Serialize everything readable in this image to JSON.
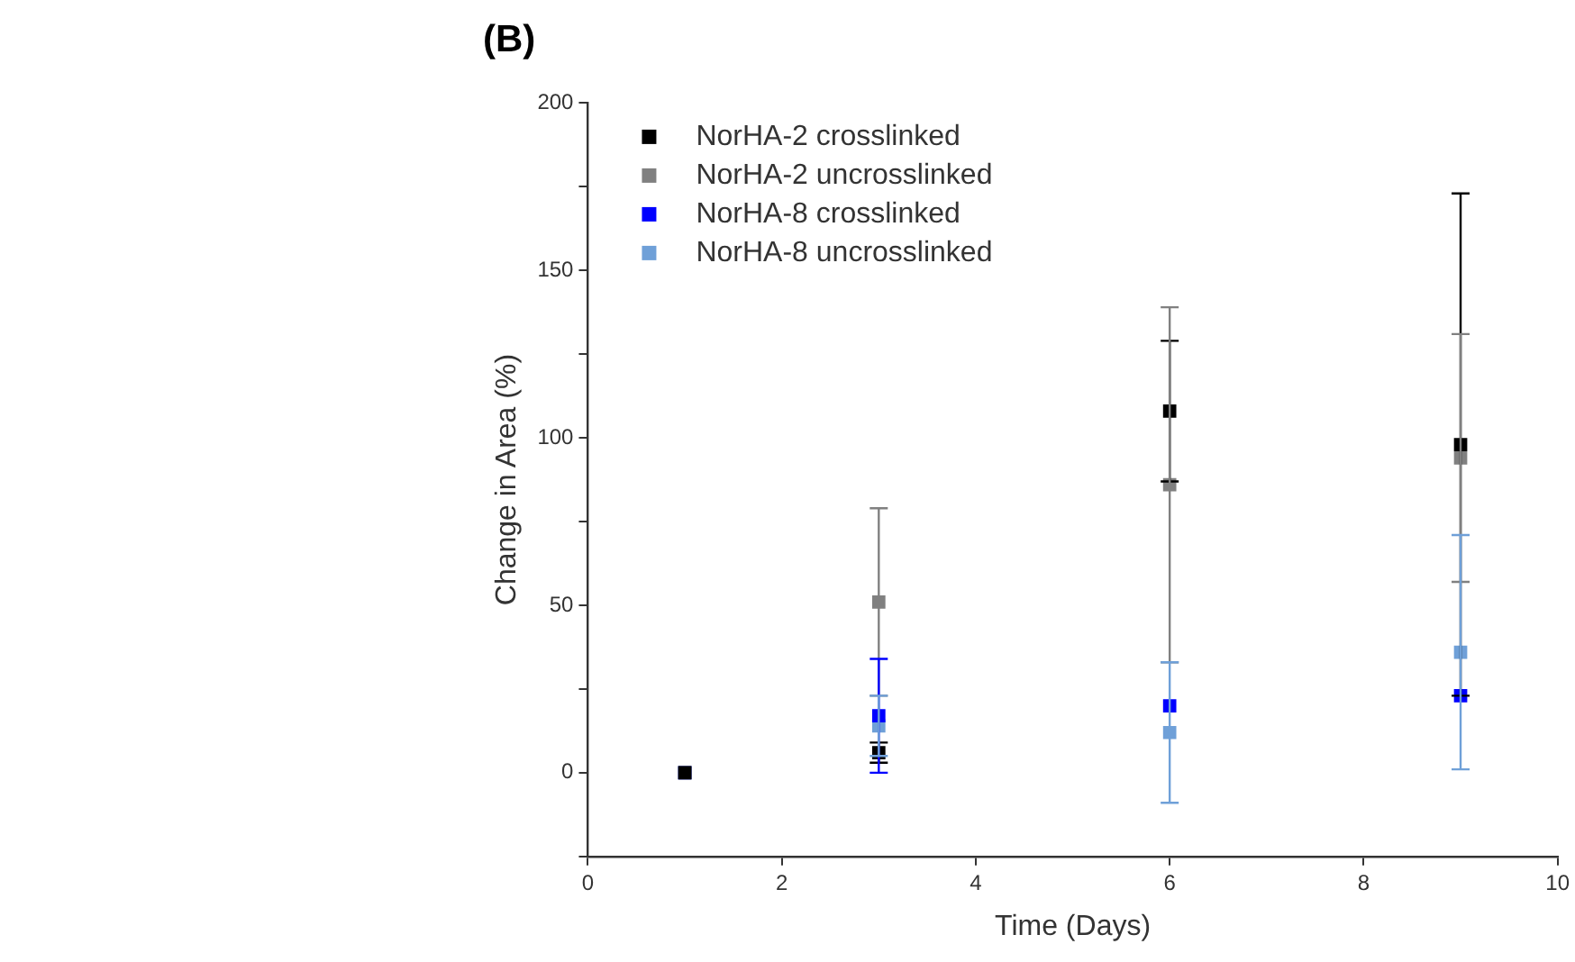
{
  "chart_data": {
    "type": "scatter",
    "title": "(B)",
    "xlabel": "Time (Days)",
    "ylabel": "Change in Area (%)",
    "x": [
      1,
      3,
      6,
      9
    ],
    "series": [
      {
        "name": "NorHA-2 crosslinked",
        "color": "#000000",
        "values": [
          0,
          6,
          108,
          98
        ],
        "errors": [
          null,
          3,
          21,
          75
        ]
      },
      {
        "name": "NorHA-2 uncrosslinked",
        "color": "#808080",
        "values": [
          0,
          51,
          86,
          94
        ],
        "errors": [
          null,
          28,
          53,
          37
        ]
      },
      {
        "name": "NorHA-8 crosslinked",
        "color": "#0000ff",
        "values": [
          0,
          17,
          20,
          23
        ],
        "errors": [
          null,
          17,
          null,
          null
        ]
      },
      {
        "name": "NorHA-8 uncrosslinked",
        "color": "#6fa0d8",
        "values": [
          0,
          14,
          12,
          36
        ],
        "errors": [
          null,
          9,
          21,
          35
        ]
      }
    ],
    "xlim": [
      0,
      10
    ],
    "xticks": [
      0,
      2,
      4,
      6,
      8,
      10
    ],
    "ylim": [
      -25,
      200
    ],
    "yticks": [
      {
        "value": -25,
        "label": null
      },
      0,
      {
        "value": 25,
        "label": null
      },
      50,
      {
        "value": 75,
        "label": null
      },
      100,
      {
        "value": 125,
        "label": null
      },
      150,
      {
        "value": 175,
        "label": null
      },
      200
    ],
    "grid": false,
    "legend": "top left",
    "marker": "square"
  }
}
